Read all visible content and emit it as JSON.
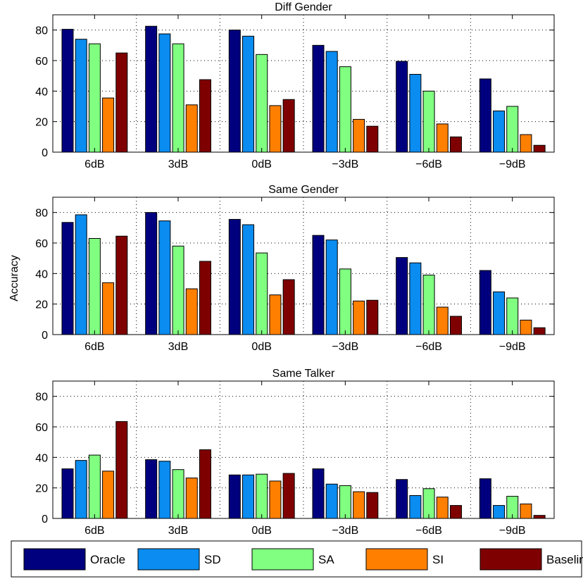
{
  "chart_data": {
    "type": "bar",
    "categories": [
      "6dB",
      "3dB",
      "0dB",
      "−3dB",
      "−6dB",
      "−9dB"
    ],
    "ylabel": "Accuracy",
    "ylim": [
      0,
      90
    ],
    "yticks": [
      0,
      20,
      40,
      60,
      80
    ],
    "grid": true,
    "legend_position": "bottom",
    "series_names": [
      "Oracle",
      "SD",
      "SA",
      "SI",
      "Baseline"
    ],
    "colors": [
      "#00007f",
      "#0a8cf0",
      "#80ff80",
      "#ff7f00",
      "#7f0000"
    ],
    "panels": [
      {
        "title": "Diff Gender",
        "series": [
          {
            "name": "Oracle",
            "values": [
              80.5,
              82.5,
              80,
              70,
              59.5,
              48
            ]
          },
          {
            "name": "SD",
            "values": [
              74,
              77.5,
              76,
              66,
              51,
              27
            ]
          },
          {
            "name": "SA",
            "values": [
              71,
              71,
              64,
              56,
              40,
              30
            ]
          },
          {
            "name": "SI",
            "values": [
              35.5,
              31,
              30.5,
              21.5,
              18.5,
              11.5
            ]
          },
          {
            "name": "Baseline",
            "values": [
              65,
              47.5,
              34.5,
              17,
              10,
              4.5
            ]
          }
        ]
      },
      {
        "title": "Same Gender",
        "series": [
          {
            "name": "Oracle",
            "values": [
              73.5,
              80,
              75.5,
              65,
              50.5,
              42
            ]
          },
          {
            "name": "SD",
            "values": [
              78.5,
              74.5,
              72,
              62,
              47,
              28
            ]
          },
          {
            "name": "SA",
            "values": [
              63,
              58,
              53.5,
              43,
              39,
              24
            ]
          },
          {
            "name": "SI",
            "values": [
              34,
              30,
              26,
              22,
              18,
              9.5
            ]
          },
          {
            "name": "Baseline",
            "values": [
              64.5,
              48,
              36,
              22.5,
              12,
              4.5
            ]
          }
        ]
      },
      {
        "title": "Same Talker",
        "series": [
          {
            "name": "Oracle",
            "values": [
              32.5,
              38.5,
              28.5,
              32.5,
              25.5,
              26
            ]
          },
          {
            "name": "SD",
            "values": [
              38,
              37.5,
              28.5,
              22.5,
              15,
              8.5
            ]
          },
          {
            "name": "SA",
            "values": [
              41.5,
              32,
              29,
              21.5,
              19.5,
              14.5
            ]
          },
          {
            "name": "SI",
            "values": [
              31,
              26.5,
              24.5,
              17.5,
              14,
              9.5
            ]
          },
          {
            "name": "Baseline",
            "values": [
              63.5,
              45,
              29.5,
              17,
              8.5,
              2
            ]
          }
        ]
      }
    ]
  }
}
